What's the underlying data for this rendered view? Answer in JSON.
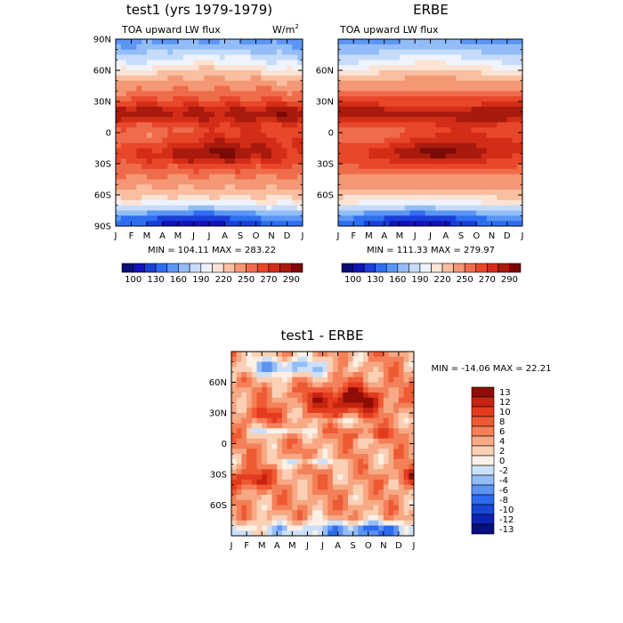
{
  "chart_data": [
    {
      "type": "heatmap",
      "title": "test1 (yrs 1979-1979)",
      "left_subtitle": "TOA upward LW flux",
      "right_subtitle": "W/m",
      "right_subtitle_sup": "2",
      "x_ticks": [
        "J",
        "F",
        "M",
        "A",
        "M",
        "J",
        "J",
        "A",
        "S",
        "O",
        "N",
        "D",
        "J"
      ],
      "y_ticks": [
        "90N",
        "60N",
        "30N",
        "0",
        "30S",
        "60S",
        "90S"
      ],
      "ylim": [
        -90,
        90
      ],
      "stats": "MIN = 104.11  MAX = 283.22",
      "min": 104.11,
      "max": 283.22,
      "colorbar_labels": [
        "100",
        "130",
        "160",
        "190",
        "220",
        "250",
        "270",
        "290"
      ]
    },
    {
      "type": "heatmap",
      "title": "ERBE",
      "left_subtitle": "TOA upward LW flux",
      "x_ticks": [
        "J",
        "F",
        "M",
        "A",
        "M",
        "J",
        "J",
        "A",
        "S",
        "O",
        "N",
        "D",
        "J"
      ],
      "y_ticks": [
        "60N",
        "30N",
        "0",
        "30S",
        "60S"
      ],
      "ylim": [
        -90,
        90
      ],
      "stats": "MIN = 111.33  MAX = 279.97",
      "min": 111.33,
      "max": 279.97,
      "colorbar_labels": [
        "100",
        "130",
        "160",
        "190",
        "220",
        "250",
        "270",
        "290"
      ]
    },
    {
      "type": "heatmap",
      "title": "test1 - ERBE",
      "x_ticks": [
        "J",
        "F",
        "M",
        "A",
        "M",
        "J",
        "J",
        "A",
        "S",
        "O",
        "N",
        "D",
        "J"
      ],
      "y_ticks": [
        "60N",
        "30N",
        "0",
        "30S",
        "60S"
      ],
      "ylim": [
        -90,
        90
      ],
      "stats": "MIN = -14.06  MAX =  22.21",
      "min": -14.06,
      "max": 22.21,
      "colorbar_labels": [
        "13",
        "12",
        "10",
        "8",
        "6",
        "4",
        "2",
        "0",
        "-2",
        "-4",
        "-6",
        "-8",
        "-10",
        "-12",
        "-13"
      ]
    }
  ],
  "colors": {
    "flux_scale": [
      "#0b0e7a",
      "#1212b8",
      "#1a3fd8",
      "#2e6ff0",
      "#5c96f5",
      "#93bdf7",
      "#c6dcfa",
      "#eef3fd",
      "#fde3d3",
      "#f9bfa0",
      "#f49774",
      "#ef6c4b",
      "#e8472a",
      "#d42d17",
      "#a81a0d",
      "#7a0a04"
    ],
    "diff_scale": [
      "#08107e",
      "#0e22b4",
      "#1a45d6",
      "#2c6aee",
      "#5c93f4",
      "#93bdf7",
      "#cde0fa",
      "#fdf0e6",
      "#fbd0b5",
      "#f7a884",
      "#f38058",
      "#ee5a33",
      "#e23c1e",
      "#c62410",
      "#8e0e05"
    ]
  }
}
